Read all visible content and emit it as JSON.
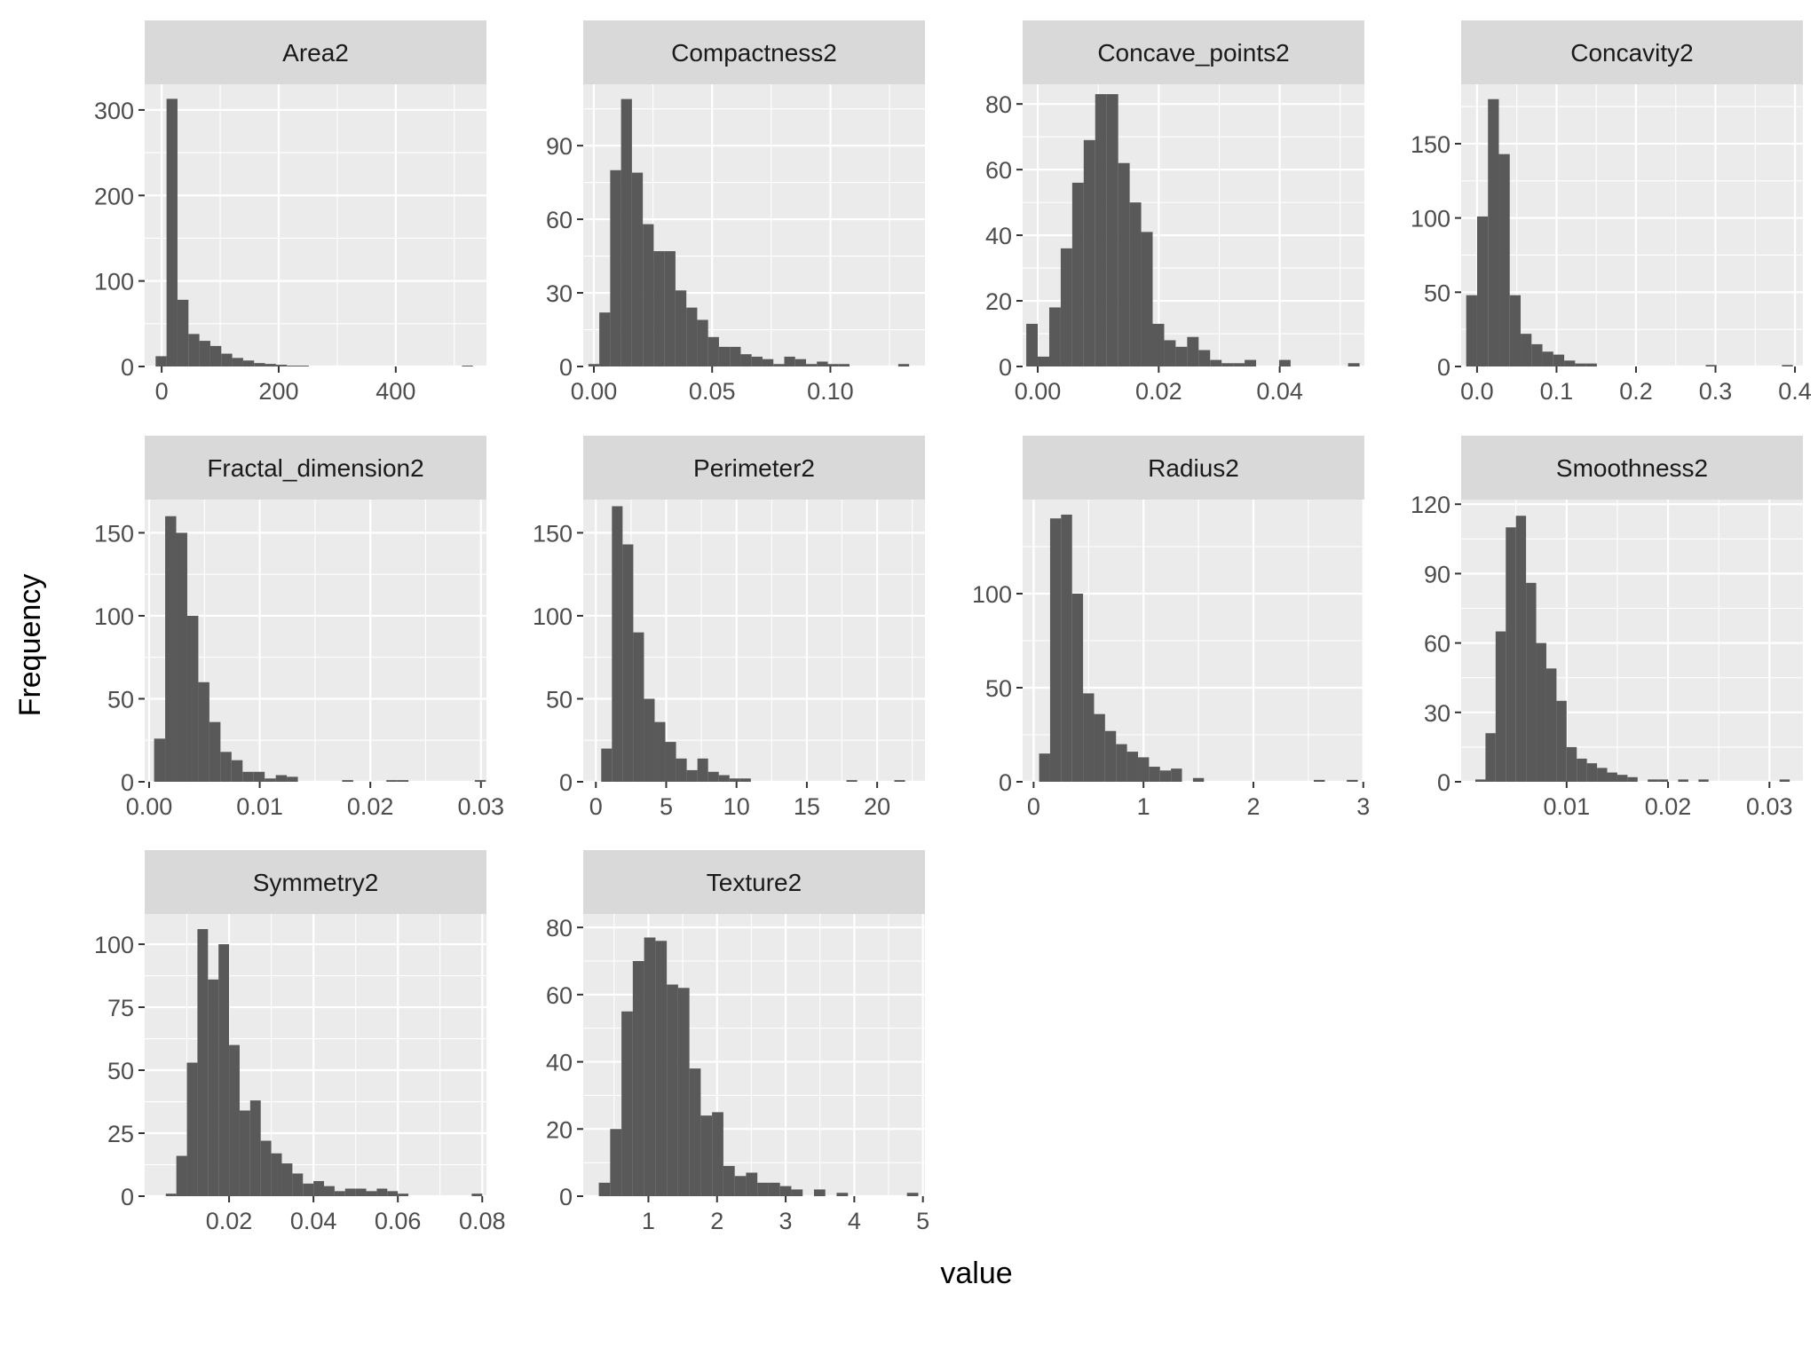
{
  "chart_data": {
    "type": "bar",
    "xlabel": "value",
    "ylabel": "Frequency",
    "grid": true,
    "facets": [
      {
        "title": "Area2",
        "xlim": [
          -29,
          555
        ],
        "ylim": [
          0,
          330
        ],
        "xticks": [
          0,
          200,
          400
        ],
        "yticks": [
          0,
          100,
          200,
          300
        ],
        "binwidth": 18.7,
        "bins": [
          {
            "x": -1.0,
            "count": 12
          },
          {
            "x": 17.7,
            "count": 313
          },
          {
            "x": 36.4,
            "count": 78
          },
          {
            "x": 55.1,
            "count": 38
          },
          {
            "x": 73.8,
            "count": 30
          },
          {
            "x": 92.5,
            "count": 24
          },
          {
            "x": 111.2,
            "count": 15
          },
          {
            "x": 129.9,
            "count": 10
          },
          {
            "x": 148.6,
            "count": 7
          },
          {
            "x": 167.3,
            "count": 4
          },
          {
            "x": 186.0,
            "count": 3
          },
          {
            "x": 204.7,
            "count": 2
          },
          {
            "x": 223.4,
            "count": 1
          },
          {
            "x": 242.1,
            "count": 1
          },
          {
            "x": 522.6,
            "count": 1
          }
        ]
      },
      {
        "title": "Compactness2",
        "xlim": [
          -0.0045,
          0.14
        ],
        "ylim": [
          0,
          115
        ],
        "xticks": [
          0,
          0.05,
          0.1
        ],
        "xticklabels": [
          "0.00",
          "0.05",
          "0.10"
        ],
        "yticks": [
          0,
          30,
          60,
          90
        ],
        "binwidth": 0.0046,
        "bins": [
          {
            "x": 0.0,
            "count": 1
          },
          {
            "x": 0.0046,
            "count": 22
          },
          {
            "x": 0.0092,
            "count": 80
          },
          {
            "x": 0.0138,
            "count": 109
          },
          {
            "x": 0.0184,
            "count": 79
          },
          {
            "x": 0.023,
            "count": 58
          },
          {
            "x": 0.0276,
            "count": 47
          },
          {
            "x": 0.0322,
            "count": 47
          },
          {
            "x": 0.0368,
            "count": 31
          },
          {
            "x": 0.0414,
            "count": 24
          },
          {
            "x": 0.046,
            "count": 19
          },
          {
            "x": 0.0506,
            "count": 12
          },
          {
            "x": 0.0552,
            "count": 8
          },
          {
            "x": 0.0598,
            "count": 8
          },
          {
            "x": 0.0644,
            "count": 5
          },
          {
            "x": 0.069,
            "count": 4
          },
          {
            "x": 0.0736,
            "count": 3
          },
          {
            "x": 0.0782,
            "count": 1
          },
          {
            "x": 0.0828,
            "count": 4
          },
          {
            "x": 0.0874,
            "count": 3
          },
          {
            "x": 0.092,
            "count": 1
          },
          {
            "x": 0.0966,
            "count": 2
          },
          {
            "x": 0.1012,
            "count": 1
          },
          {
            "x": 0.1058,
            "count": 1
          },
          {
            "x": 0.131,
            "count": 1
          }
        ]
      },
      {
        "title": "Concave_points2",
        "xlim": [
          -0.0025,
          0.054
        ],
        "ylim": [
          0,
          86
        ],
        "xticks": [
          0,
          0.02,
          0.04
        ],
        "xticklabels": [
          "0.00",
          "0.02",
          "0.04"
        ],
        "yticks": [
          0,
          20,
          40,
          60,
          80
        ],
        "binwidth": 0.0019,
        "bins": [
          {
            "x": -0.00095,
            "count": 13
          },
          {
            "x": 0.00095,
            "count": 3
          },
          {
            "x": 0.00285,
            "count": 18
          },
          {
            "x": 0.00475,
            "count": 36
          },
          {
            "x": 0.00665,
            "count": 56
          },
          {
            "x": 0.00855,
            "count": 69
          },
          {
            "x": 0.01045,
            "count": 83
          },
          {
            "x": 0.01235,
            "count": 83
          },
          {
            "x": 0.01425,
            "count": 62
          },
          {
            "x": 0.01615,
            "count": 50
          },
          {
            "x": 0.01805,
            "count": 41
          },
          {
            "x": 0.01995,
            "count": 13
          },
          {
            "x": 0.02185,
            "count": 8
          },
          {
            "x": 0.02375,
            "count": 6
          },
          {
            "x": 0.02565,
            "count": 9
          },
          {
            "x": 0.02755,
            "count": 5
          },
          {
            "x": 0.02945,
            "count": 2
          },
          {
            "x": 0.03135,
            "count": 1
          },
          {
            "x": 0.03325,
            "count": 1
          },
          {
            "x": 0.03515,
            "count": 2
          },
          {
            "x": 0.04085,
            "count": 2
          },
          {
            "x": 0.05225,
            "count": 1
          }
        ]
      },
      {
        "title": "Concavity2",
        "xlim": [
          -0.02,
          0.41
        ],
        "ylim": [
          0,
          190
        ],
        "xticks": [
          0,
          0.1,
          0.2,
          0.3,
          0.4
        ],
        "xticklabels": [
          "0.0",
          "0.1",
          "0.2",
          "0.3",
          "0.4"
        ],
        "yticks": [
          0,
          50,
          100,
          150
        ],
        "binwidth": 0.0137,
        "bins": [
          {
            "x": -0.0068,
            "count": 48
          },
          {
            "x": 0.0069,
            "count": 101
          },
          {
            "x": 0.0206,
            "count": 180
          },
          {
            "x": 0.0343,
            "count": 143
          },
          {
            "x": 0.048,
            "count": 48
          },
          {
            "x": 0.0617,
            "count": 22
          },
          {
            "x": 0.0754,
            "count": 15
          },
          {
            "x": 0.0891,
            "count": 10
          },
          {
            "x": 0.1028,
            "count": 8
          },
          {
            "x": 0.1165,
            "count": 4
          },
          {
            "x": 0.1302,
            "count": 2
          },
          {
            "x": 0.1439,
            "count": 2
          },
          {
            "x": 0.2946,
            "count": 1
          },
          {
            "x": 0.3905,
            "count": 1
          }
        ]
      },
      {
        "title": "Fractal_dimension2",
        "xlim": [
          -0.0004,
          0.0305
        ],
        "ylim": [
          0,
          170
        ],
        "xticks": [
          0,
          0.01,
          0.02,
          0.03
        ],
        "xticklabels": [
          "0.00",
          "0.01",
          "0.02",
          "0.03"
        ],
        "yticks": [
          0,
          50,
          100,
          150
        ],
        "binwidth": 0.001,
        "bins": [
          {
            "x": 0.00095,
            "count": 26
          },
          {
            "x": 0.00195,
            "count": 160
          },
          {
            "x": 0.00295,
            "count": 150
          },
          {
            "x": 0.00395,
            "count": 100
          },
          {
            "x": 0.00495,
            "count": 60
          },
          {
            "x": 0.00595,
            "count": 36
          },
          {
            "x": 0.00695,
            "count": 18
          },
          {
            "x": 0.00795,
            "count": 13
          },
          {
            "x": 0.00895,
            "count": 6
          },
          {
            "x": 0.00995,
            "count": 6
          },
          {
            "x": 0.01095,
            "count": 2
          },
          {
            "x": 0.01195,
            "count": 4
          },
          {
            "x": 0.01295,
            "count": 3
          },
          {
            "x": 0.01795,
            "count": 1
          },
          {
            "x": 0.02195,
            "count": 1
          },
          {
            "x": 0.02295,
            "count": 1
          },
          {
            "x": 0.02995,
            "count": 1
          }
        ]
      },
      {
        "title": "Perimeter2",
        "xlim": [
          -0.9,
          23.4
        ],
        "ylim": [
          0,
          170
        ],
        "xticks": [
          0,
          5,
          10,
          15,
          20
        ],
        "yticks": [
          0,
          50,
          100,
          150
        ],
        "binwidth": 0.76,
        "bins": [
          {
            "x": 0.76,
            "count": 20
          },
          {
            "x": 1.52,
            "count": 166
          },
          {
            "x": 2.28,
            "count": 143
          },
          {
            "x": 3.04,
            "count": 90
          },
          {
            "x": 3.8,
            "count": 50
          },
          {
            "x": 4.56,
            "count": 36
          },
          {
            "x": 5.32,
            "count": 24
          },
          {
            "x": 6.08,
            "count": 14
          },
          {
            "x": 6.84,
            "count": 7
          },
          {
            "x": 7.6,
            "count": 14
          },
          {
            "x": 8.36,
            "count": 6
          },
          {
            "x": 9.12,
            "count": 4
          },
          {
            "x": 9.88,
            "count": 2
          },
          {
            "x": 10.64,
            "count": 2
          },
          {
            "x": 18.2,
            "count": 1
          },
          {
            "x": 21.6,
            "count": 1
          }
        ]
      },
      {
        "title": "Radius2",
        "xlim": [
          -0.1,
          3.01
        ],
        "ylim": [
          0,
          150
        ],
        "xticks": [
          0,
          1,
          2,
          3
        ],
        "yticks": [
          0,
          50,
          100
        ],
        "binwidth": 0.1,
        "bins": [
          {
            "x": 0.1,
            "count": 15
          },
          {
            "x": 0.2,
            "count": 140
          },
          {
            "x": 0.3,
            "count": 142
          },
          {
            "x": 0.4,
            "count": 100
          },
          {
            "x": 0.5,
            "count": 47
          },
          {
            "x": 0.6,
            "count": 36
          },
          {
            "x": 0.7,
            "count": 27
          },
          {
            "x": 0.8,
            "count": 20
          },
          {
            "x": 0.9,
            "count": 16
          },
          {
            "x": 1.0,
            "count": 13
          },
          {
            "x": 1.1,
            "count": 8
          },
          {
            "x": 1.2,
            "count": 6
          },
          {
            "x": 1.3,
            "count": 7
          },
          {
            "x": 1.5,
            "count": 2
          },
          {
            "x": 2.6,
            "count": 1
          },
          {
            "x": 2.9,
            "count": 1
          }
        ]
      },
      {
        "title": "Smoothness2",
        "xlim": [
          -0.0004,
          0.0333
        ],
        "ylim": [
          0,
          122
        ],
        "xticks": [
          0.01,
          0.02,
          0.03
        ],
        "xticklabels": [
          "0.01",
          "0.02",
          "0.03"
        ],
        "yticks": [
          0,
          30,
          60,
          90,
          120
        ],
        "binwidth": 0.001,
        "bins": [
          {
            "x": 0.0015,
            "count": 1
          },
          {
            "x": 0.0025,
            "count": 21
          },
          {
            "x": 0.0035,
            "count": 65
          },
          {
            "x": 0.0045,
            "count": 110
          },
          {
            "x": 0.0055,
            "count": 115
          },
          {
            "x": 0.0065,
            "count": 86
          },
          {
            "x": 0.0075,
            "count": 60
          },
          {
            "x": 0.0085,
            "count": 49
          },
          {
            "x": 0.0095,
            "count": 35
          },
          {
            "x": 0.0105,
            "count": 15
          },
          {
            "x": 0.0115,
            "count": 10
          },
          {
            "x": 0.0125,
            "count": 8
          },
          {
            "x": 0.0135,
            "count": 6
          },
          {
            "x": 0.0145,
            "count": 4
          },
          {
            "x": 0.0155,
            "count": 3
          },
          {
            "x": 0.0165,
            "count": 2
          },
          {
            "x": 0.0185,
            "count": 1
          },
          {
            "x": 0.0195,
            "count": 1
          },
          {
            "x": 0.0215,
            "count": 1
          },
          {
            "x": 0.0235,
            "count": 1
          },
          {
            "x": 0.0315,
            "count": 1
          }
        ]
      },
      {
        "title": "Symmetry2",
        "xlim": [
          0.0,
          0.081
        ],
        "ylim": [
          0,
          112
        ],
        "xticks": [
          0.02,
          0.04,
          0.06,
          0.08
        ],
        "xticklabels": [
          "0.02",
          "0.04",
          "0.06",
          "0.08"
        ],
        "yticks": [
          0,
          25,
          50,
          75,
          100
        ],
        "binwidth": 0.0025,
        "bins": [
          {
            "x": 0.00625,
            "count": 1
          },
          {
            "x": 0.00875,
            "count": 16
          },
          {
            "x": 0.01125,
            "count": 53
          },
          {
            "x": 0.01375,
            "count": 106
          },
          {
            "x": 0.01625,
            "count": 86
          },
          {
            "x": 0.01875,
            "count": 100
          },
          {
            "x": 0.02125,
            "count": 60
          },
          {
            "x": 0.02375,
            "count": 34
          },
          {
            "x": 0.02625,
            "count": 38
          },
          {
            "x": 0.02875,
            "count": 22
          },
          {
            "x": 0.03125,
            "count": 17
          },
          {
            "x": 0.03375,
            "count": 13
          },
          {
            "x": 0.03625,
            "count": 9
          },
          {
            "x": 0.03875,
            "count": 5
          },
          {
            "x": 0.04125,
            "count": 6
          },
          {
            "x": 0.04375,
            "count": 4
          },
          {
            "x": 0.04625,
            "count": 2
          },
          {
            "x": 0.04875,
            "count": 3
          },
          {
            "x": 0.05125,
            "count": 3
          },
          {
            "x": 0.05375,
            "count": 2
          },
          {
            "x": 0.05625,
            "count": 3
          },
          {
            "x": 0.05875,
            "count": 2
          },
          {
            "x": 0.06125,
            "count": 1
          },
          {
            "x": 0.07875,
            "count": 1
          }
        ]
      },
      {
        "title": "Texture2",
        "xlim": [
          0.05,
          5.03
        ],
        "ylim": [
          0,
          84
        ],
        "xticks": [
          1,
          2,
          3,
          4,
          5
        ],
        "yticks": [
          0,
          20,
          40,
          60,
          80
        ],
        "binwidth": 0.165,
        "bins": [
          {
            "x": 0.36,
            "count": 4
          },
          {
            "x": 0.525,
            "count": 20
          },
          {
            "x": 0.69,
            "count": 55
          },
          {
            "x": 0.855,
            "count": 70
          },
          {
            "x": 1.02,
            "count": 77
          },
          {
            "x": 1.185,
            "count": 76
          },
          {
            "x": 1.35,
            "count": 63
          },
          {
            "x": 1.515,
            "count": 62
          },
          {
            "x": 1.68,
            "count": 38
          },
          {
            "x": 1.845,
            "count": 24
          },
          {
            "x": 2.01,
            "count": 25
          },
          {
            "x": 2.175,
            "count": 9
          },
          {
            "x": 2.34,
            "count": 6
          },
          {
            "x": 2.505,
            "count": 7
          },
          {
            "x": 2.67,
            "count": 4
          },
          {
            "x": 2.835,
            "count": 4
          },
          {
            "x": 3.0,
            "count": 3
          },
          {
            "x": 3.165,
            "count": 2
          },
          {
            "x": 3.495,
            "count": 2
          },
          {
            "x": 3.825,
            "count": 1
          },
          {
            "x": 4.85,
            "count": 1
          }
        ]
      }
    ]
  }
}
